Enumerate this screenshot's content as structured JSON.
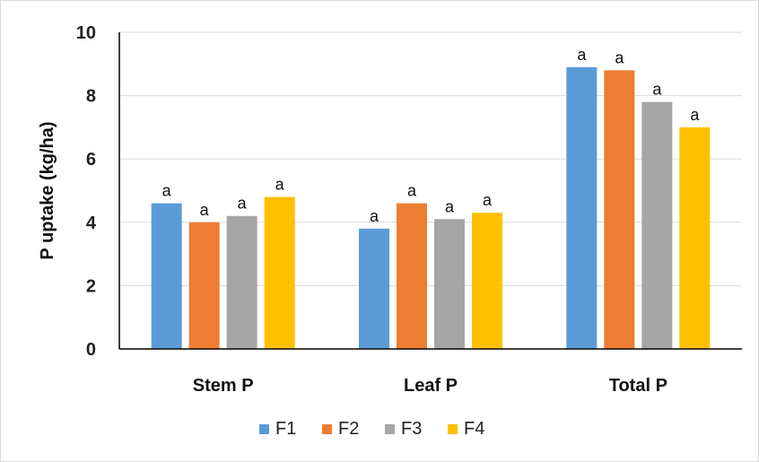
{
  "chart_data": {
    "type": "bar",
    "title": "",
    "xlabel": "",
    "ylabel": "P uptake (kg/ha)",
    "ylim": [
      0,
      10
    ],
    "yticks": [
      0,
      2,
      4,
      6,
      8,
      10
    ],
    "grid": true,
    "legend_position": "bottom",
    "categories": [
      "Stem P",
      "Leaf P",
      "Total P"
    ],
    "series": [
      {
        "name": "F1",
        "color": "#5b9bd5",
        "values": [
          4.6,
          3.8,
          8.9
        ],
        "labels": [
          "a",
          "a",
          "a"
        ]
      },
      {
        "name": "F2",
        "color": "#ed7d31",
        "values": [
          4.0,
          4.6,
          8.8
        ],
        "labels": [
          "a",
          "a",
          "a"
        ]
      },
      {
        "name": "F3",
        "color": "#a5a5a5",
        "values": [
          4.2,
          4.1,
          7.8
        ],
        "labels": [
          "a",
          "a",
          "a"
        ]
      },
      {
        "name": "F4",
        "color": "#ffc000",
        "values": [
          4.8,
          4.3,
          7.0
        ],
        "labels": [
          "a",
          "a",
          "a"
        ]
      }
    ]
  }
}
